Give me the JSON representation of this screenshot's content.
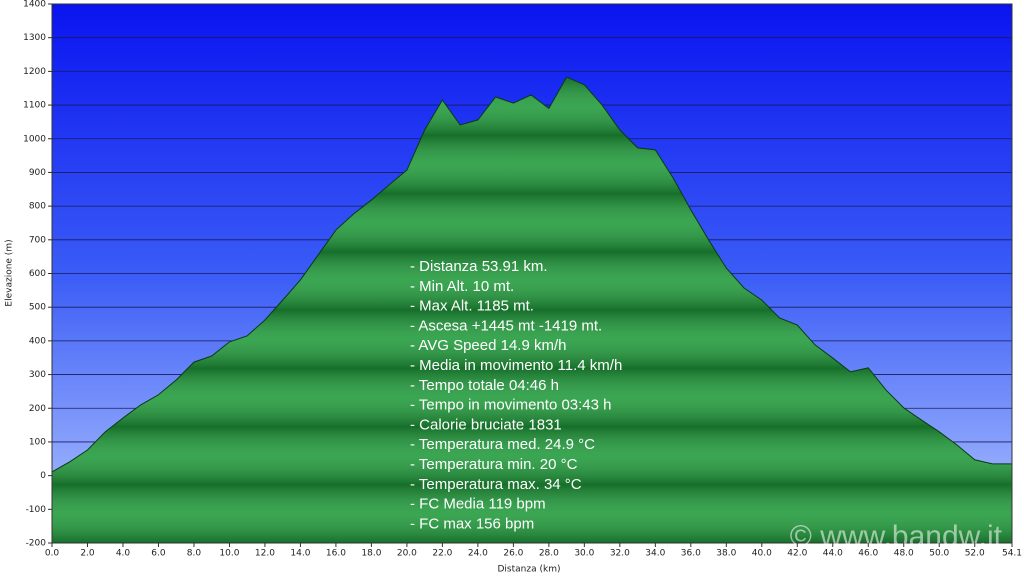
{
  "chart_data": {
    "type": "area",
    "x_label": "Distanza  (km)",
    "y_label": "Elevazione (m)",
    "x": [
      0,
      1,
      2,
      3,
      4,
      5,
      6,
      7,
      8,
      9,
      10,
      11,
      12,
      13,
      14,
      15,
      16,
      17,
      18,
      19,
      20,
      21,
      22,
      23,
      24,
      25,
      26,
      27,
      28,
      29,
      30,
      31,
      32,
      33,
      34,
      35,
      36,
      37,
      38,
      39,
      40,
      41,
      42,
      43,
      44,
      45,
      46,
      47,
      48,
      49,
      50,
      51,
      52,
      53,
      54.1
    ],
    "series": [
      {
        "color": "#1f9a3a",
        "values": [
          11,
          41,
          76,
          130,
          171,
          210,
          240,
          284,
          337,
          355,
          397,
          415,
          462,
          521,
          581,
          655,
          729,
          777,
          818,
          863,
          907,
          1026,
          1115,
          1041,
          1056,
          1124,
          1106,
          1130,
          1090,
          1183,
          1160,
          1100,
          1026,
          973,
          967,
          884,
          789,
          700,
          616,
          557,
          521,
          468,
          447,
          388,
          349,
          308,
          320,
          254,
          201,
          165,
          130,
          91,
          47,
          35,
          35
        ]
      }
    ],
    "xlim": [
      0,
      54.1
    ],
    "xticks": [
      {
        "value": 0,
        "label": "0.0"
      },
      {
        "value": 2,
        "label": "2.0"
      },
      {
        "value": 4,
        "label": "4.0"
      },
      {
        "value": 6,
        "label": "6.0"
      },
      {
        "value": 8,
        "label": "8.0"
      },
      {
        "value": 10,
        "label": "10.0"
      },
      {
        "value": 12,
        "label": "12.0"
      },
      {
        "value": 14,
        "label": "14.0"
      },
      {
        "value": 16,
        "label": "16.0"
      },
      {
        "value": 18,
        "label": "18.0"
      },
      {
        "value": 20,
        "label": "20.0"
      },
      {
        "value": 22,
        "label": "22.0"
      },
      {
        "value": 24,
        "label": "24.0"
      },
      {
        "value": 26,
        "label": "26.0"
      },
      {
        "value": 28,
        "label": "28.0"
      },
      {
        "value": 30,
        "label": "30.0"
      },
      {
        "value": 32,
        "label": "32.0"
      },
      {
        "value": 34,
        "label": "34.0"
      },
      {
        "value": 36,
        "label": "36.0"
      },
      {
        "value": 38,
        "label": "38.0"
      },
      {
        "value": 40,
        "label": "40.0"
      },
      {
        "value": 42,
        "label": "42.0"
      },
      {
        "value": 44,
        "label": "44.0"
      },
      {
        "value": 46,
        "label": "46.0"
      },
      {
        "value": 48,
        "label": "48.0"
      },
      {
        "value": 50,
        "label": "50.0"
      },
      {
        "value": 52,
        "label": "52.0"
      },
      54.1
    ],
    "ylim": [
      -200,
      1400
    ],
    "yticks": [
      -200,
      -100,
      0,
      100,
      200,
      300,
      400,
      500,
      600,
      700,
      800,
      900,
      1000,
      1100,
      1200,
      1300,
      1400
    ],
    "grid": true,
    "annotations": [
      "- Distanza 53.91 km.",
      "- Min Alt. 10 mt.",
      "- Max Alt. 1185 mt.",
      "- Ascesa +1445 mt -1419 mt.",
      "- AVG Speed 14.9 km/h",
      "- Media in movimento 11.4 km/h",
      "- Tempo totale 04:46 h",
      "- Tempo in movimento 03:43 h",
      "- Calorie bruciate 1831",
      "- Temperatura med. 24.9 °C",
      "- Temperatura min. 20 °C",
      "- Temperatura max. 34 °C",
      "- FC Media 119 bpm",
      "- FC max 156 bpm"
    ],
    "watermark": "© www.bandw.it"
  }
}
